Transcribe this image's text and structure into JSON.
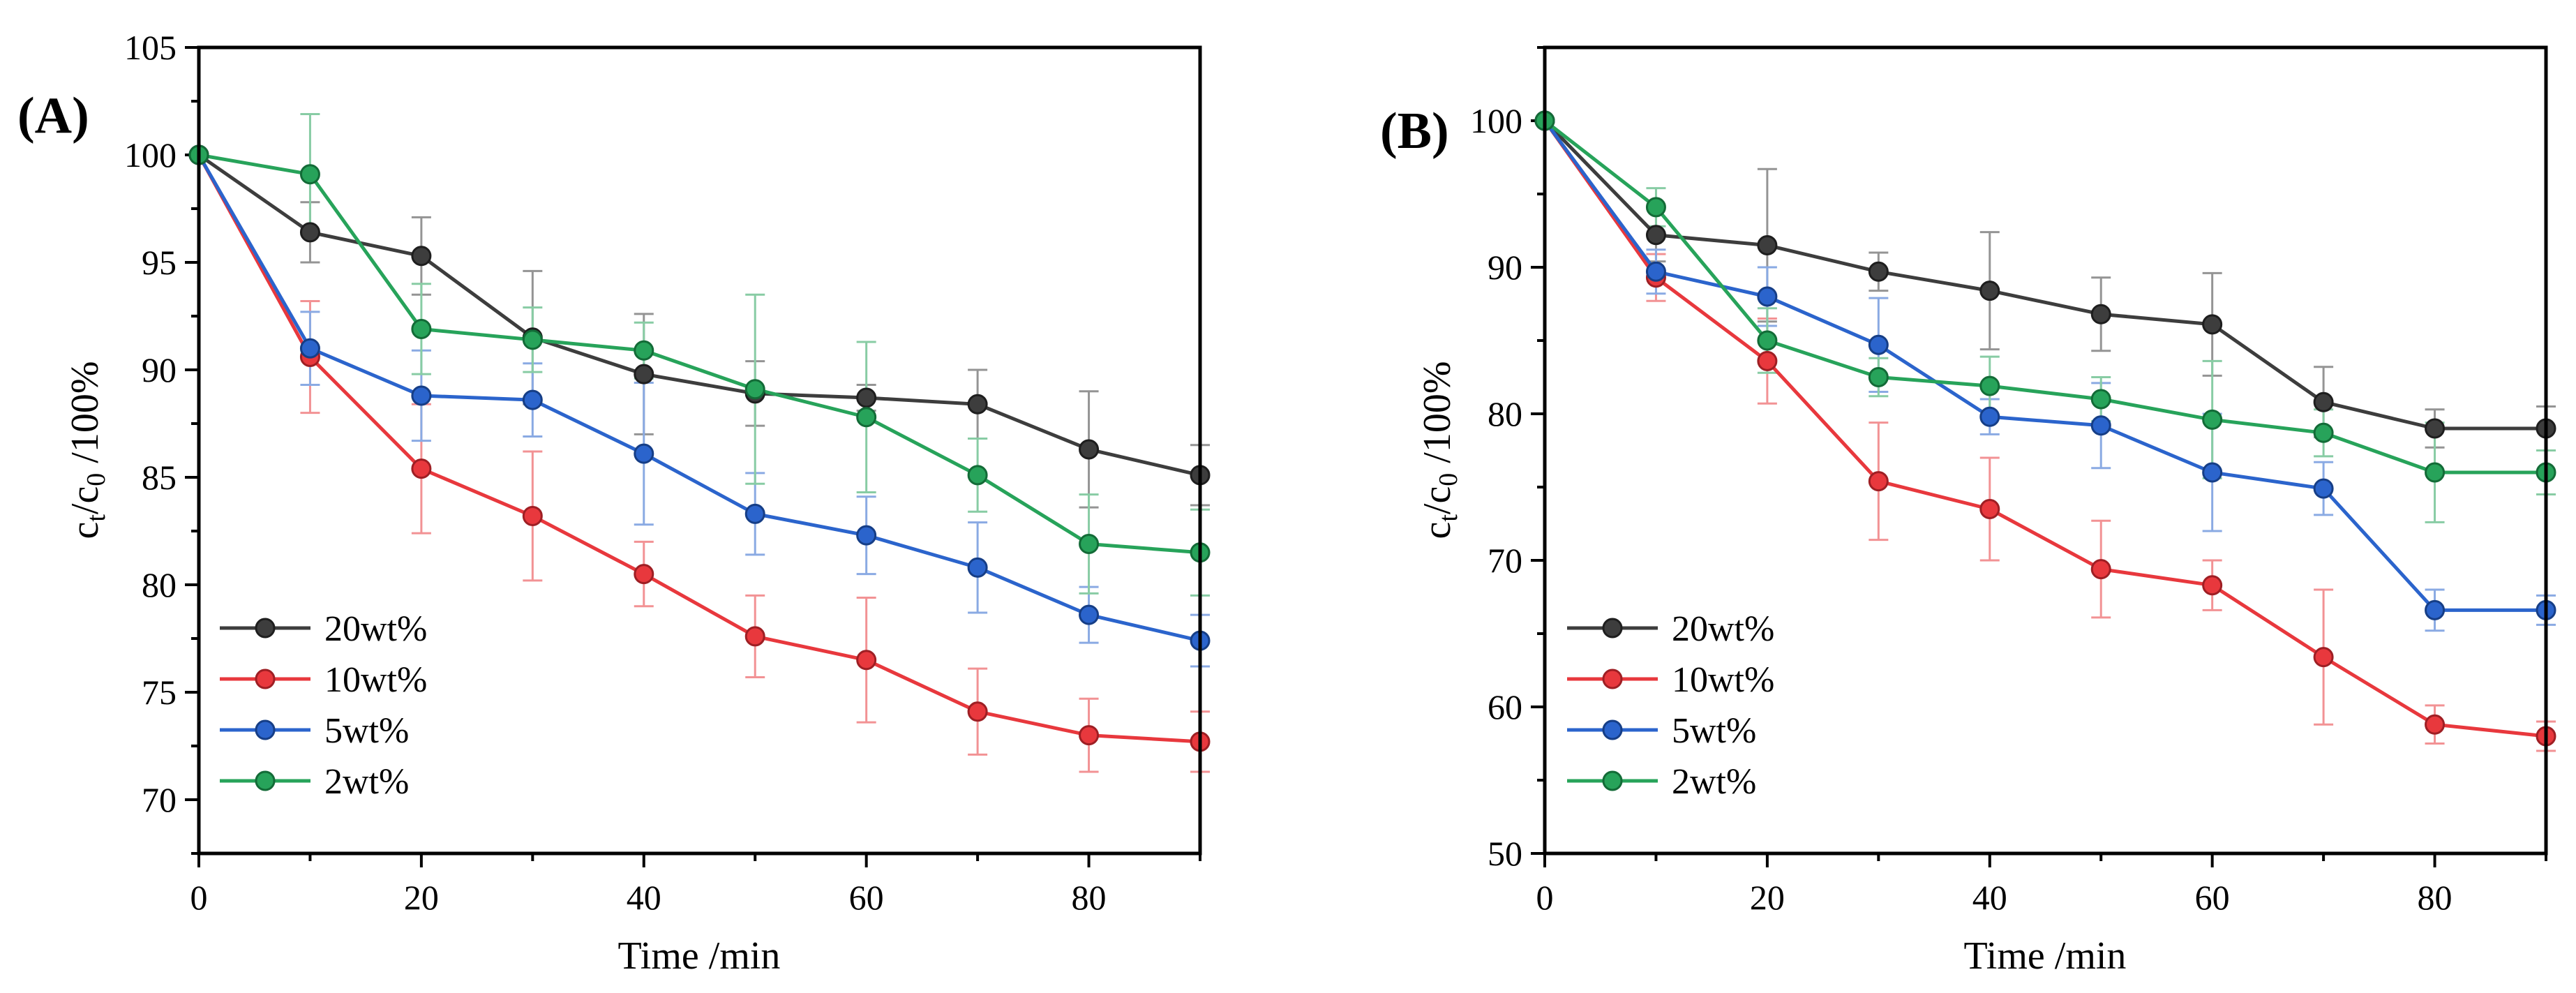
{
  "chart_data": [
    {
      "type": "line",
      "panel_label": "(A)",
      "xlabel": "Time /min",
      "ylabel": {
        "c": "c",
        "t": "t",
        "slash": "/c",
        "zero": "0",
        "tail": " /100%"
      },
      "xlim": [
        0,
        90
      ],
      "ylim": [
        67.5,
        105
      ],
      "xticks": [
        0,
        20,
        40,
        60,
        80
      ],
      "yticks": [
        70,
        75,
        80,
        85,
        90,
        95,
        100,
        105
      ],
      "legend_position": "lower-left",
      "x": [
        0,
        10,
        20,
        30,
        40,
        50,
        60,
        70,
        80,
        90
      ],
      "series": [
        {
          "name": "20wt%",
          "color": "#3d3d3d",
          "values": [
            100,
            96.4,
            95.3,
            91.5,
            89.8,
            88.9,
            88.7,
            88.4,
            86.3,
            85.1
          ],
          "errors": [
            0,
            1.4,
            1.8,
            3.1,
            2.8,
            1.5,
            0.6,
            1.6,
            2.7,
            1.4
          ]
        },
        {
          "name": "10wt%",
          "color": "#e8383d",
          "values": [
            100,
            90.6,
            85.4,
            83.2,
            80.5,
            77.6,
            76.5,
            74.1,
            73.0,
            72.7
          ],
          "errors": [
            0,
            2.6,
            3.0,
            3.0,
            1.5,
            1.9,
            2.9,
            2.0,
            1.7,
            1.4
          ]
        },
        {
          "name": "5wt%",
          "color": "#2b64cc",
          "values": [
            100,
            91.0,
            88.8,
            88.6,
            86.1,
            83.3,
            82.3,
            80.8,
            78.6,
            77.4
          ],
          "errors": [
            0,
            1.7,
            2.1,
            1.7,
            3.3,
            1.9,
            1.8,
            2.1,
            1.3,
            1.2
          ]
        },
        {
          "name": "2wt%",
          "color": "#27a35a",
          "values": [
            100,
            99.1,
            91.9,
            91.4,
            90.9,
            89.1,
            87.8,
            85.1,
            81.9,
            81.5
          ],
          "errors": [
            0,
            2.8,
            2.1,
            1.5,
            1.3,
            4.4,
            3.5,
            1.7,
            2.3,
            2.0
          ]
        }
      ]
    },
    {
      "type": "line",
      "panel_label": "(B)",
      "xlabel": "Time /min",
      "ylabel": {
        "c": "c",
        "t": "t",
        "slash": "/c",
        "zero": "0",
        "tail": " /100%"
      },
      "xlim": [
        0,
        90
      ],
      "ylim": [
        50,
        105
      ],
      "xticks": [
        0,
        20,
        40,
        60,
        80
      ],
      "yticks": [
        50,
        60,
        70,
        80,
        90,
        100
      ],
      "legend_position": "lower-left",
      "x": [
        0,
        10,
        20,
        30,
        40,
        50,
        60,
        70,
        80,
        90
      ],
      "series": [
        {
          "name": "20wt%",
          "color": "#3d3d3d",
          "values": [
            100,
            92.2,
            91.5,
            89.7,
            88.4,
            86.8,
            86.1,
            80.8,
            79.0,
            79.0
          ],
          "errors": [
            0,
            1.8,
            5.2,
            1.3,
            4.0,
            2.5,
            3.5,
            2.4,
            1.3,
            1.5
          ]
        },
        {
          "name": "10wt%",
          "color": "#e8383d",
          "values": [
            100,
            89.3,
            83.6,
            75.4,
            73.5,
            69.4,
            68.3,
            63.4,
            58.8,
            58.0
          ],
          "errors": [
            0,
            1.6,
            2.9,
            4.0,
            3.5,
            3.3,
            1.7,
            4.6,
            1.3,
            1.0
          ]
        },
        {
          "name": "5wt%",
          "color": "#2b64cc",
          "values": [
            100,
            89.7,
            88.0,
            84.7,
            79.8,
            79.2,
            76.0,
            74.9,
            66.6,
            66.6
          ],
          "errors": [
            0,
            1.5,
            2.0,
            3.2,
            1.2,
            2.9,
            4.0,
            1.8,
            1.4,
            1.0
          ]
        },
        {
          "name": "2wt%",
          "color": "#27a35a",
          "values": [
            100,
            94.1,
            85.0,
            82.5,
            81.9,
            81.0,
            79.6,
            78.7,
            76.0,
            76.0
          ],
          "errors": [
            0,
            1.3,
            2.2,
            1.3,
            2.0,
            1.5,
            4.0,
            1.6,
            3.4,
            1.5
          ]
        }
      ]
    }
  ]
}
